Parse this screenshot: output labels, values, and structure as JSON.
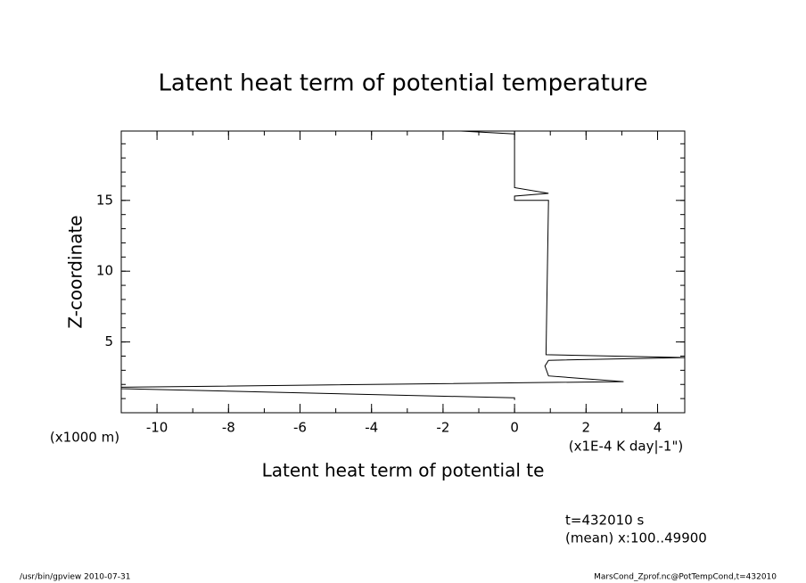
{
  "chart_data": {
    "type": "line",
    "title": "Latent heat term of potential temperature",
    "x_label": "Latent heat term of potential te",
    "x_units": "(x1E-4 K day|-1\")",
    "y_label": "Z-coordinate",
    "y_units": "(x1000 m)",
    "annotations": [
      "t=432010 s",
      "(mean) x:100..49900"
    ],
    "footer_left": "/usr/bin/gpview  2010-07-31",
    "footer_right": "MarsCond_Zprof.nc@PotTempCond,t=432010",
    "color": "#000000",
    "x": [
      -1.5,
      0,
      0,
      0.95,
      0,
      0,
      0.95,
      0.88,
      4.76,
      0.95,
      0.85,
      0.95,
      3.05,
      -11,
      -11,
      0,
      0
    ],
    "y": [
      19.9,
      19.7,
      15.9,
      15.5,
      15.3,
      15.0,
      15.0,
      4.1,
      3.9,
      3.7,
      3.3,
      2.6,
      2.2,
      1.8,
      1.7,
      1.05,
      0.9
    ],
    "xlim": [
      -11,
      4.76
    ],
    "ylim": [
      0,
      19.9
    ],
    "xticks": [
      -10,
      -8,
      -6,
      -4,
      -2,
      0,
      2,
      4
    ],
    "yticks": [
      5,
      10,
      15
    ],
    "xminorticks": [
      -10,
      -9,
      -8,
      -7,
      -6,
      -5,
      -4,
      -3,
      -2,
      -1,
      0,
      1,
      2,
      3,
      4
    ],
    "yminorticks": [
      1,
      2,
      3,
      4,
      5,
      6,
      7,
      8,
      9,
      10,
      11,
      12,
      13,
      14,
      15,
      16,
      17,
      18,
      19
    ]
  }
}
